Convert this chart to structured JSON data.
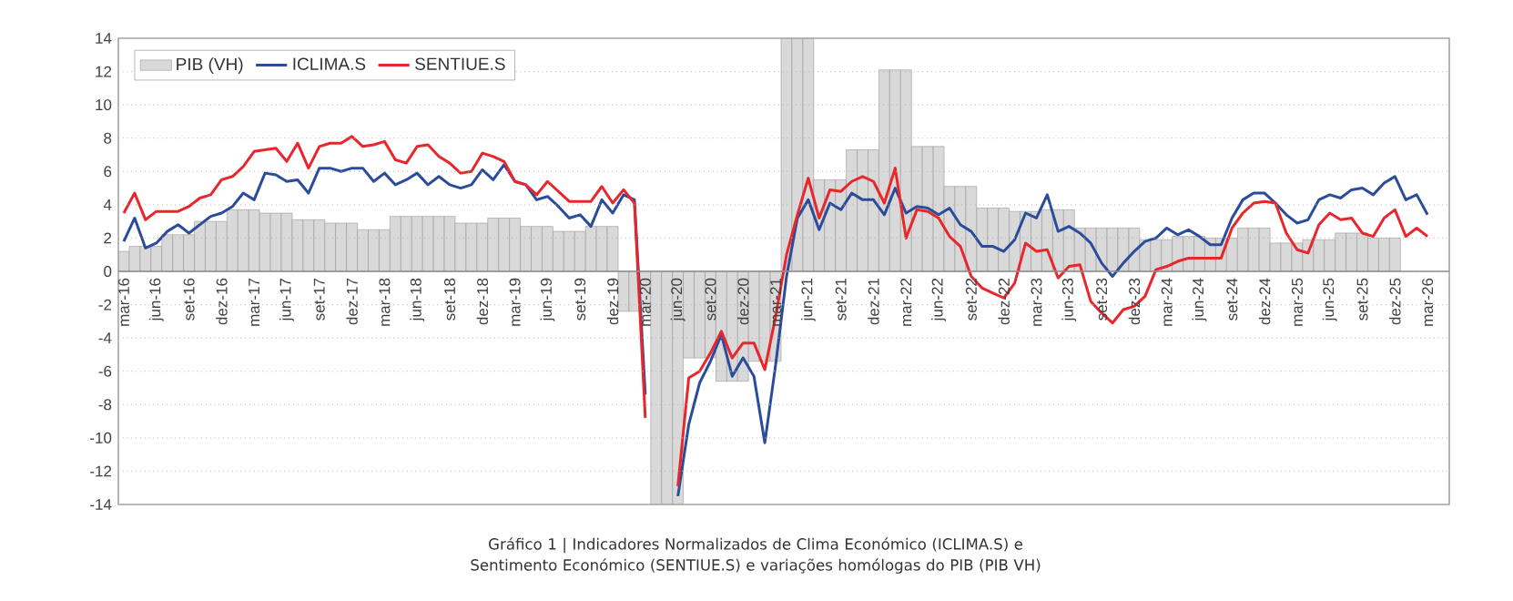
{
  "chart_data": {
    "type": "line",
    "title": "Gráfico 1 | Indicadores Normalizados de Clima Económico (ICLIMA.S) e Sentimento Económico (SENTIUE.S) e variações homólogas do PIB (PIB VH)",
    "categories": [
      "mar-16",
      null,
      null,
      "jun-16",
      null,
      null,
      "set-16",
      null,
      null,
      "dez-16",
      null,
      null,
      "mar-17",
      null,
      null,
      "jun-17",
      null,
      null,
      "set-17",
      null,
      null,
      "dez-17",
      null,
      null,
      "mar-18",
      null,
      null,
      "jun-18",
      null,
      null,
      "set-18",
      null,
      null,
      "dez-18",
      null,
      null,
      "mar-19",
      null,
      null,
      "jun-19",
      null,
      null,
      "set-19",
      null,
      null,
      "dez-19",
      null,
      null,
      "mar-20",
      null,
      null,
      "jun-20",
      null,
      null,
      "set-20",
      null,
      null,
      "dez-20",
      null,
      null,
      "mar-21",
      null,
      null,
      "jun-21",
      null,
      null,
      "set-21",
      null,
      null,
      "dez-21",
      null,
      null,
      "mar-22",
      null,
      null,
      "jun-22",
      null,
      null,
      "set-22",
      null,
      null,
      "dez-22",
      null,
      null,
      "mar-23",
      null,
      null,
      "jun-23",
      null,
      null,
      "set-23",
      null,
      null,
      "dez-23",
      null,
      null,
      "mar-24",
      null,
      null,
      "jun-24",
      null,
      null,
      "set-24",
      null,
      null,
      "dez-24",
      null,
      null,
      "mar-25",
      null,
      null,
      "jun-25",
      null,
      null,
      "set-25",
      null,
      null,
      "dez-25",
      null,
      null,
      "mar-26"
    ],
    "series": [
      {
        "name": "PIB (VH)",
        "type": "bar",
        "color": "#d9d9d9",
        "values": [
          1.2,
          1.5,
          1.5,
          1.5,
          2.2,
          2.2,
          2.2,
          3.0,
          3.0,
          3.0,
          3.7,
          3.7,
          3.7,
          3.5,
          3.5,
          3.5,
          3.1,
          3.1,
          3.1,
          2.9,
          2.9,
          2.9,
          2.5,
          2.5,
          2.5,
          3.3,
          3.3,
          3.3,
          3.3,
          3.3,
          3.3,
          2.9,
          2.9,
          2.9,
          3.2,
          3.2,
          3.2,
          2.7,
          2.7,
          2.7,
          2.4,
          2.4,
          2.4,
          2.7,
          2.7,
          2.7,
          -2.4,
          -2.4,
          -2.4,
          -14,
          -14,
          -14,
          -5.2,
          -5.2,
          -5.2,
          -6.6,
          -6.6,
          -6.6,
          -5.4,
          -5.4,
          -5.4,
          14,
          14,
          14,
          5.5,
          5.5,
          5.5,
          7.3,
          7.3,
          7.3,
          12.1,
          12.1,
          12.1,
          7.5,
          7.5,
          7.5,
          5.1,
          5.1,
          5.1,
          3.8,
          3.8,
          3.8,
          3.6,
          3.6,
          3.6,
          3.7,
          3.7,
          3.7,
          2.6,
          2.6,
          2.6,
          2.6,
          2.6,
          2.6,
          1.9,
          1.9,
          1.9,
          2.1,
          2.1,
          2.1,
          2.0,
          2.0,
          2.0,
          2.6,
          2.6,
          2.6,
          1.7,
          1.7,
          1.7,
          1.9,
          1.9,
          1.9,
          2.3,
          2.3,
          2.3,
          2.0,
          2.0,
          2.0,
          null,
          null,
          null
        ]
      },
      {
        "name": "ICLIMA.S",
        "color": "#2b4c9b",
        "values": [
          1.8,
          3.2,
          1.4,
          1.7,
          2.4,
          2.8,
          2.3,
          2.8,
          3.3,
          3.5,
          3.9,
          4.7,
          4.3,
          5.9,
          5.8,
          5.4,
          5.5,
          4.7,
          6.2,
          6.2,
          6.0,
          6.2,
          6.2,
          5.4,
          5.9,
          5.2,
          5.5,
          5.9,
          5.2,
          5.7,
          5.2,
          5.0,
          5.2,
          6.1,
          5.5,
          6.4,
          5.4,
          5.2,
          4.3,
          4.5,
          3.9,
          3.2,
          3.4,
          2.7,
          4.3,
          3.5,
          4.6,
          4.3,
          -7.4,
          null,
          null,
          -13.5,
          -9.2,
          -6.7,
          -5.4,
          -3.8,
          -6.3,
          -5.2,
          -6.3,
          -10.3,
          -5.6,
          -0.3,
          3.2,
          4.3,
          2.5,
          4.1,
          3.7,
          4.7,
          4.3,
          4.3,
          3.4,
          5.0,
          3.5,
          3.9,
          3.8,
          3.4,
          3.8,
          2.8,
          2.4,
          1.5,
          1.5,
          1.2,
          1.9,
          3.5,
          3.2,
          4.6,
          2.4,
          2.7,
          2.3,
          1.7,
          0.5,
          -0.3,
          0.5,
          1.2,
          1.8,
          2.0,
          2.6,
          2.2,
          2.5,
          2.1,
          1.6,
          1.6,
          3.2,
          4.3,
          4.7,
          4.7,
          4.1,
          3.4,
          2.9,
          3.1,
          4.3,
          4.6,
          4.4,
          4.9,
          5.0,
          4.6,
          5.3,
          5.7,
          4.3,
          4.6,
          3.4
        ]
      },
      {
        "name": "SENTIUE.S",
        "color": "#e8262b",
        "values": [
          3.5,
          4.7,
          3.1,
          3.6,
          3.6,
          3.6,
          3.9,
          4.4,
          4.6,
          5.5,
          5.7,
          6.3,
          7.2,
          7.3,
          7.4,
          6.6,
          7.7,
          6.2,
          7.5,
          7.7,
          7.7,
          8.1,
          7.5,
          7.6,
          7.8,
          6.7,
          6.5,
          7.5,
          7.6,
          6.9,
          6.5,
          5.9,
          6.0,
          7.1,
          6.9,
          6.6,
          5.4,
          5.2,
          4.6,
          5.4,
          4.8,
          4.2,
          4.2,
          4.2,
          5.1,
          4.1,
          4.9,
          4.1,
          -8.8,
          null,
          null,
          -12.9,
          -6.4,
          -6.0,
          -4.9,
          -3.6,
          -5.2,
          -4.3,
          -4.3,
          -5.9,
          -2.7,
          1.0,
          3.4,
          5.6,
          3.2,
          4.9,
          4.8,
          5.4,
          5.7,
          5.4,
          4.1,
          6.2,
          2.0,
          3.7,
          3.6,
          3.2,
          2.1,
          1.5,
          -0.3,
          -1.0,
          -1.3,
          -1.6,
          -0.7,
          1.7,
          1.2,
          1.3,
          -0.4,
          0.3,
          0.4,
          -1.8,
          -2.5,
          -3.1,
          -2.3,
          -2.1,
          -1.5,
          0.1,
          0.3,
          0.6,
          0.8,
          0.8,
          0.8,
          0.8,
          2.6,
          3.5,
          4.1,
          4.2,
          4.1,
          2.3,
          1.3,
          1.1,
          2.8,
          3.5,
          3.1,
          3.2,
          2.3,
          2.1,
          3.2,
          3.7,
          2.1,
          2.6,
          2.1
        ]
      }
    ],
    "ylim": [
      -14,
      14
    ],
    "yticks": [
      -14,
      -12,
      -10,
      -8,
      -6,
      -4,
      -2,
      0,
      2,
      4,
      6,
      8,
      10,
      12,
      14
    ],
    "grid": "y",
    "legend": "top left"
  }
}
